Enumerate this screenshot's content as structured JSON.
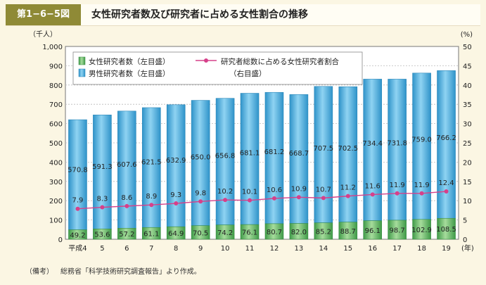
{
  "header": {
    "figure_number": "第1−6−5図",
    "title": "女性研究者数及び研究者に占める女性割合の推移"
  },
  "note": {
    "label": "（備考）",
    "text": "総務省「科学技術研究調査報告」より作成。"
  },
  "colors": {
    "female_bar": "#5cae5c",
    "male_bar": "#45aee0",
    "line": "#d6408a"
  },
  "chart_data": {
    "type": "bar",
    "stacked": true,
    "categories": [
      "平成4",
      "5",
      "6",
      "7",
      "8",
      "9",
      "10",
      "11",
      "12",
      "13",
      "14",
      "15",
      "16",
      "17",
      "18",
      "19"
    ],
    "series": [
      {
        "name": "女性研究者数（左目盛）",
        "axis": "left",
        "values": [
          49.2,
          53.6,
          57.2,
          61.1,
          64.9,
          70.5,
          74.2,
          76.1,
          80.7,
          82.0,
          85.2,
          88.7,
          96.1,
          98.7,
          102.9,
          108.5
        ]
      },
      {
        "name": "男性研究者数（左目盛）",
        "axis": "left",
        "values": [
          570.8,
          591.3,
          607.6,
          621.5,
          632.9,
          650.0,
          656.8,
          681.1,
          681.2,
          668.7,
          707.5,
          702.5,
          734.4,
          731.8,
          759.0,
          766.2
        ]
      },
      {
        "name": "研究者総数に占める女性研究者割合",
        "name_line2": "（右目盛）",
        "type": "line",
        "axis": "right",
        "values": [
          7.9,
          8.3,
          8.6,
          8.9,
          9.3,
          9.8,
          10.2,
          10.1,
          10.6,
          10.9,
          10.7,
          11.2,
          11.6,
          11.9,
          11.9,
          12.4
        ]
      }
    ],
    "y_left": {
      "unit": "（千人）",
      "range": [
        0,
        1000
      ],
      "ticks": [
        0,
        100,
        200,
        300,
        400,
        500,
        600,
        700,
        800,
        900,
        1000
      ],
      "tick_labels": [
        "0",
        "100",
        "200",
        "300",
        "400",
        "500",
        "600",
        "700",
        "800",
        "900",
        "1,000"
      ]
    },
    "y_right": {
      "unit": "(%)",
      "range": [
        0,
        50
      ],
      "ticks": [
        0,
        5,
        10,
        15,
        20,
        25,
        30,
        35,
        40,
        45,
        50
      ]
    },
    "x_unit": "(年)",
    "grid": true,
    "legend_position": "top-left"
  }
}
